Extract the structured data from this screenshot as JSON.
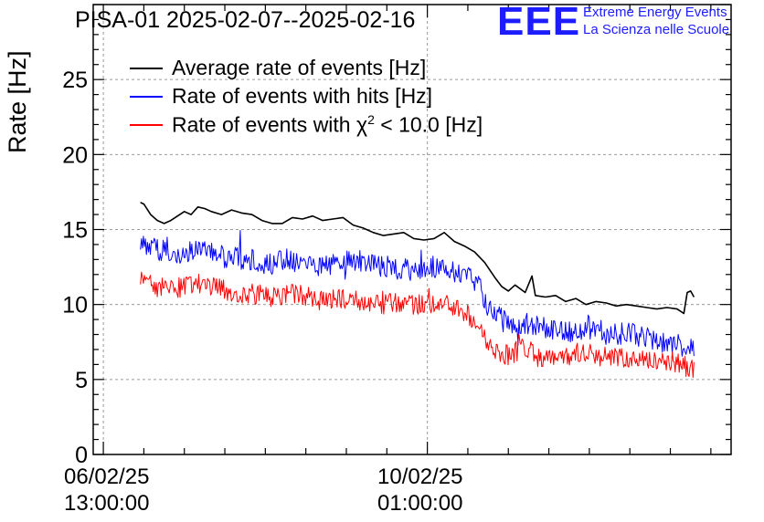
{
  "header": {
    "title": "PISA-01 2025-02-07--2025-02-16",
    "logo_mark": "EEE",
    "logo_line1": "Extreme Energy Events",
    "logo_line2": "La Scienza nelle Scuole"
  },
  "chart_data": {
    "type": "line",
    "title": "PISA-01 2025-02-07--2025-02-16",
    "ylabel": "Rate [Hz]",
    "xlabel": "",
    "ylim": [
      0,
      30
    ],
    "xlim_hours": [
      -3,
      186
    ],
    "grid": true,
    "legend_position": "top-left",
    "y_ticks": [
      0,
      5,
      10,
      15,
      20,
      25
    ],
    "x_ticks": [
      {
        "date": "06/02/25",
        "time": "13:00:00",
        "hours": 0
      },
      {
        "date": "10/02/25",
        "time": "01:00:00",
        "hours": 96
      }
    ],
    "series": [
      {
        "name": "Average rate of events [Hz]",
        "color": "#000000",
        "x": [
          11,
          12,
          14,
          16,
          18,
          20,
          22,
          24,
          26,
          28,
          30,
          32,
          35,
          38,
          41,
          44,
          47,
          50,
          53,
          56,
          59,
          62,
          65,
          68,
          71,
          74,
          77,
          80,
          83,
          86,
          89,
          92,
          95,
          98,
          101,
          104,
          107,
          110,
          113,
          116,
          118,
          120,
          122,
          125,
          127,
          128,
          131,
          134,
          137,
          140,
          143,
          146,
          149,
          152,
          155,
          158,
          161,
          164,
          167,
          170,
          172,
          173,
          174,
          175
        ],
        "values": [
          16.8,
          16.7,
          16.0,
          15.6,
          15.4,
          15.6,
          15.9,
          16.2,
          16.0,
          16.5,
          16.4,
          16.2,
          16.0,
          16.3,
          16.1,
          16.0,
          15.6,
          15.4,
          15.4,
          15.8,
          15.7,
          15.9,
          15.6,
          15.7,
          15.8,
          15.3,
          15.1,
          14.8,
          14.6,
          14.7,
          14.8,
          14.4,
          14.3,
          14.4,
          14.8,
          14.2,
          13.9,
          13.5,
          12.8,
          11.8,
          11.2,
          10.9,
          11.3,
          10.8,
          11.9,
          10.6,
          10.5,
          10.6,
          10.2,
          10.4,
          10.0,
          10.2,
          10.1,
          9.9,
          10.0,
          9.9,
          9.8,
          9.7,
          9.8,
          9.7,
          9.4,
          10.8,
          10.9,
          10.5
        ]
      },
      {
        "name": "Rate of events with hits [Hz]",
        "color": "#0000ff",
        "x": [
          11,
          15,
          20,
          25,
          30,
          35,
          40,
          45,
          50,
          55,
          60,
          65,
          70,
          75,
          80,
          85,
          90,
          95,
          100,
          105,
          108,
          111,
          113,
          116,
          119,
          122,
          125,
          128,
          131,
          135,
          140,
          145,
          150,
          155,
          160,
          165,
          170,
          175
        ],
        "values": [
          14.0,
          13.8,
          13.4,
          13.5,
          13.6,
          13.2,
          13.1,
          12.9,
          12.7,
          13.0,
          12.8,
          12.6,
          12.8,
          12.9,
          12.7,
          12.5,
          12.3,
          12.4,
          12.6,
          12.0,
          11.8,
          11.4,
          10.2,
          9.5,
          9.0,
          8.6,
          8.8,
          8.5,
          8.4,
          8.3,
          8.2,
          8.4,
          8.0,
          8.1,
          7.8,
          7.6,
          7.3,
          7.0
        ],
        "noise": 1.5
      },
      {
        "name": "Rate of events with χ² < 10.0 [Hz]",
        "label_text": "Rate of events with χ",
        "label_sup": "2",
        "label_rest": " < 10.0 [Hz]",
        "color": "#ff0000",
        "x": [
          11,
          15,
          20,
          25,
          30,
          35,
          40,
          45,
          50,
          55,
          60,
          65,
          70,
          75,
          80,
          85,
          90,
          95,
          100,
          105,
          108,
          111,
          113,
          116,
          119,
          122,
          125,
          128,
          131,
          135,
          140,
          145,
          150,
          155,
          160,
          165,
          170,
          175
        ],
        "values": [
          11.6,
          11.2,
          11.0,
          11.3,
          11.4,
          11.0,
          10.8,
          10.7,
          10.5,
          10.8,
          10.5,
          10.3,
          10.4,
          10.2,
          10.0,
          10.1,
          9.9,
          10.0,
          10.2,
          9.6,
          9.3,
          8.6,
          7.6,
          7.0,
          6.6,
          6.8,
          7.3,
          6.6,
          6.4,
          6.5,
          6.6,
          6.7,
          6.4,
          6.5,
          6.3,
          6.4,
          6.1,
          5.6
        ],
        "noise": 1.4
      }
    ]
  }
}
